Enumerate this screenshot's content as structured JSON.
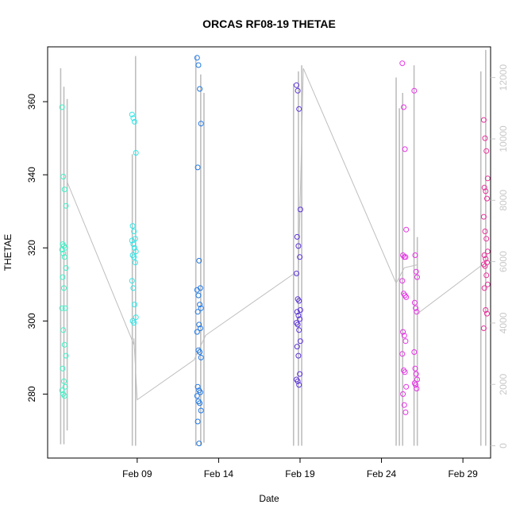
{
  "chart_data": {
    "type": "scatter",
    "title": "ORCAS RF08-19 THETAE",
    "xlabel": "Date",
    "ylabel": "THETAE",
    "x_ticks": [
      "Feb 09",
      "Feb 14",
      "Feb 19",
      "Feb 24",
      "Feb 29"
    ],
    "x_tick_days": [
      9,
      14,
      19,
      24,
      29
    ],
    "x_range_days": [
      3.5,
      30.7
    ],
    "y_ticks": [
      280,
      300,
      320,
      340,
      360
    ],
    "ylim": [
      262.5,
      375.0
    ],
    "y2_ticks": [
      0,
      2000,
      4000,
      6000,
      8000,
      10000,
      12000
    ],
    "y2lim": [
      -400,
      13000
    ],
    "grid": false,
    "series_colors": [
      "#3ef2c8",
      "#30e6e8",
      "#1e78e6",
      "#5a32d8",
      "#e632e6",
      "#e6329a"
    ],
    "altitude_color": "#bebebe",
    "scatter_series": [
      {
        "day": 4.5,
        "color": "#3ef2c8",
        "y": [
          358.5,
          339.5,
          336,
          331.5,
          321,
          320.5,
          320,
          319.5,
          318.5,
          317.5,
          314.5,
          312,
          309,
          303.5,
          303.5,
          297.5,
          293.5,
          290.5,
          287,
          283.5,
          282,
          281,
          280,
          279.5
        ]
      },
      {
        "day": 8.8,
        "color": "#30e6e8",
        "y": [
          356.5,
          355.5,
          354.5,
          346,
          326,
          324.5,
          322.5,
          322,
          321,
          320,
          319,
          318,
          317.5,
          316,
          311,
          309,
          304.5,
          301,
          300,
          299.5
        ]
      },
      {
        "day": 12.8,
        "color": "#1e78e6",
        "y": [
          372,
          370,
          363.5,
          354,
          342,
          316.5,
          309,
          308.5,
          307,
          304.5,
          303.5,
          302.5,
          299,
          298,
          297,
          292,
          291.5,
          290,
          282,
          281,
          280.5,
          279.5,
          278,
          277.5,
          275.5,
          272.5,
          266.5
        ]
      },
      {
        "day": 18.9,
        "color": "#5a32d8",
        "y": [
          364.5,
          363,
          358,
          330.5,
          323,
          320.5,
          317.5,
          313,
          306,
          305.5,
          303,
          302.5,
          301.5,
          300.5,
          299.5,
          299,
          297.5,
          294.5,
          293,
          290.5,
          285.5,
          284,
          283.5,
          282.5
        ]
      },
      {
        "day": 25.4,
        "color": "#e632e6",
        "y": [
          370.5,
          358.5,
          347,
          325,
          318,
          317.5,
          317.5,
          311,
          307.5,
          307,
          306.5,
          297,
          296,
          294.5,
          291,
          286.5,
          286,
          282,
          280,
          277,
          275,
          363,
          318,
          313.5,
          312,
          305,
          303.5,
          302.5,
          291.5,
          287,
          285.5,
          284,
          283,
          282.5,
          281.5
        ]
      },
      {
        "day": 30.4,
        "color": "#e6329a",
        "y": [
          355,
          350,
          346.5,
          339,
          336.5,
          335.5,
          333.5,
          328.5,
          324.5,
          322.5,
          319,
          318,
          317,
          316,
          315.5,
          315,
          312.5,
          310,
          309,
          303,
          302,
          298
        ]
      }
    ],
    "altitude_trace": {
      "day": [
        4.7,
        8.8,
        8.8,
        9.0,
        12.5,
        13.2,
        18.6,
        18.9,
        19.2,
        24.9,
        25.4,
        26.2,
        26.2,
        30.2
      ],
      "alt": [
        8600,
        3300,
        3500,
        1500,
        2800,
        3600,
        5600,
        5600,
        12300,
        5300,
        5800,
        5900,
        4300,
        5900
      ]
    },
    "altitude_spikes": [
      {
        "day": 4.3,
        "min": 50,
        "max": 12300
      },
      {
        "day": 4.5,
        "min": 50,
        "max": 11700
      },
      {
        "day": 4.7,
        "min": 500,
        "max": 11300
      },
      {
        "day": 8.7,
        "min": 0,
        "max": 9500
      },
      {
        "day": 8.9,
        "min": 0,
        "max": 12700
      },
      {
        "day": 12.6,
        "min": 0,
        "max": 12700
      },
      {
        "day": 12.9,
        "min": 0,
        "max": 12100
      },
      {
        "day": 13.1,
        "min": 100,
        "max": 11500
      },
      {
        "day": 18.6,
        "min": 0,
        "max": 11800
      },
      {
        "day": 18.9,
        "min": 0,
        "max": 12200
      },
      {
        "day": 19.1,
        "min": 0,
        "max": 12400
      },
      {
        "day": 24.9,
        "min": 0,
        "max": 12000
      },
      {
        "day": 25.1,
        "min": 0,
        "max": 11000
      },
      {
        "day": 25.3,
        "min": 0,
        "max": 11500
      },
      {
        "day": 26.0,
        "min": 0,
        "max": 12400
      },
      {
        "day": 26.2,
        "min": 0,
        "max": 6800
      },
      {
        "day": 30.1,
        "min": 0,
        "max": 12200
      },
      {
        "day": 30.4,
        "min": 0,
        "max": 12900
      }
    ]
  }
}
